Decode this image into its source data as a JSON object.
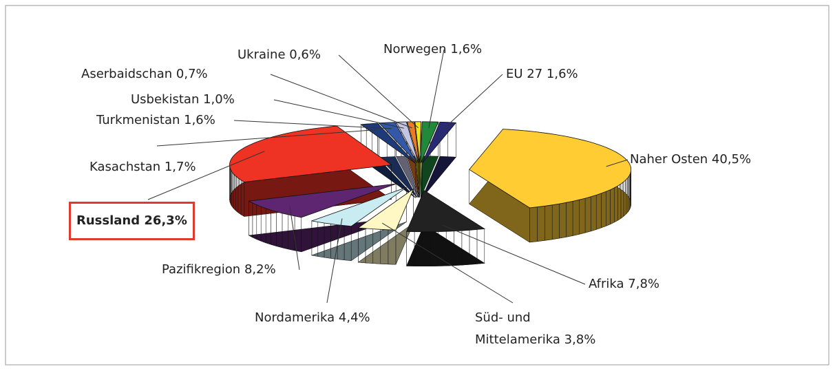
{
  "chart_data": {
    "type": "pie",
    "categories": [
      "Naher Osten",
      "Afrika",
      "Süd- und Mittelamerika",
      "Nordamerika",
      "Pazifikregion",
      "Russland",
      "Kasachstan",
      "Turkmenistan",
      "Usbekistan",
      "Aserbaidschan",
      "Ukraine",
      "Norwegen",
      "EU 27"
    ],
    "values": [
      40.5,
      7.8,
      3.8,
      4.4,
      8.2,
      26.3,
      1.7,
      1.6,
      1.0,
      0.7,
      0.6,
      1.6,
      1.6
    ],
    "value_labels": [
      "40,5%",
      "7,8%",
      "3,8%",
      "4,4%",
      "8,2%",
      "26,3%",
      "1,7%",
      "1,6%",
      "1,0%",
      "0,7%",
      "0,6%",
      "1,6%",
      "1,6%"
    ],
    "colors": [
      "#ffcc33",
      "#222222",
      "#fff8c4",
      "#c8ecf2",
      "#5e2670",
      "#ee3224",
      "#1e3a78",
      "#3358a8",
      "#c4c4e4",
      "#e87a2a",
      "#f2e21e",
      "#22893a",
      "#2a2a72"
    ]
  }
}
